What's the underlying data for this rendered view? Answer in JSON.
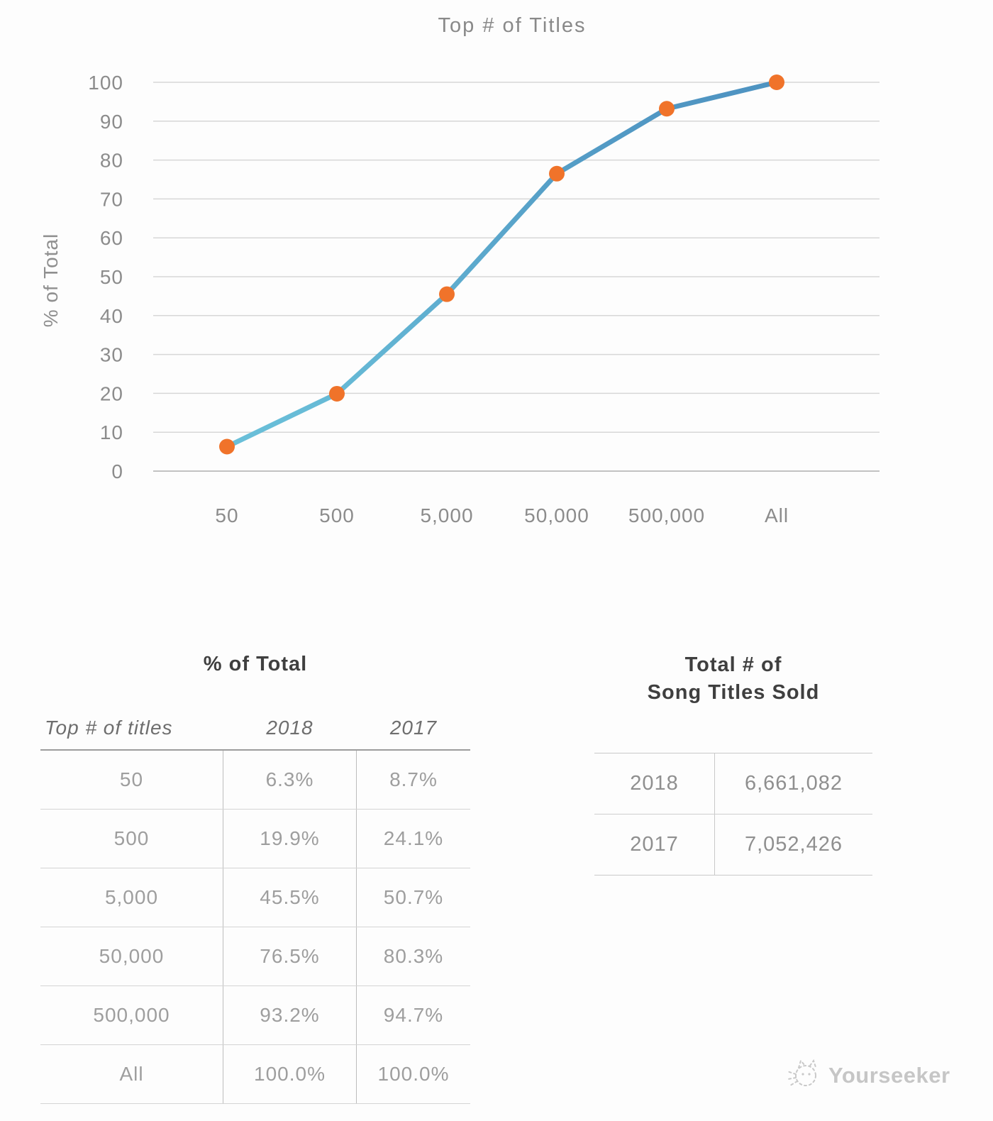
{
  "chart_data": {
    "type": "line",
    "title": "Top # of Titles",
    "ylabel": "% of Total",
    "xlabel": "",
    "categories": [
      "50",
      "500",
      "5,000",
      "50,000",
      "500,000",
      "All"
    ],
    "series": [
      {
        "name": "2018",
        "values": [
          6.3,
          19.9,
          45.5,
          76.5,
          93.2,
          100.0
        ]
      }
    ],
    "ylim": [
      0,
      100
    ],
    "y_ticks": [
      0,
      10,
      20,
      30,
      40,
      50,
      60,
      70,
      80,
      90,
      100
    ],
    "grid": true,
    "legend": "none",
    "line_color_top": "#4E93C1",
    "line_color_bottom": "#6CC3DB",
    "marker_color": "#F0732A"
  },
  "percent_table": {
    "title": "% of Total",
    "columns": [
      "Top # of titles",
      "2018",
      "2017"
    ],
    "rows": [
      {
        "label": "50",
        "y2018": "6.3%",
        "y2017": "8.7%"
      },
      {
        "label": "500",
        "y2018": "19.9%",
        "y2017": "24.1%"
      },
      {
        "label": "5,000",
        "y2018": "45.5%",
        "y2017": "50.7%"
      },
      {
        "label": "50,000",
        "y2018": "76.5%",
        "y2017": "80.3%"
      },
      {
        "label": "500,000",
        "y2018": "93.2%",
        "y2017": "94.7%"
      },
      {
        "label": "All",
        "y2018": "100.0%",
        "y2017": "100.0%"
      }
    ]
  },
  "totals_table": {
    "title_line1": "Total # of",
    "title_line2": "Song Titles Sold",
    "rows": [
      {
        "label": "2018",
        "value": "6,661,082"
      },
      {
        "label": "2017",
        "value": "7,052,426"
      }
    ]
  },
  "watermark": {
    "label": "Yourseeker",
    "icon": "cat-doodle-icon"
  },
  "colors": {
    "gridline": "#d7d7d7",
    "axis_line": "#c2c2c2",
    "tick_text": "#8c8c8c",
    "table_text": "#9e9e9e",
    "header_text": "#6e6e6e",
    "title_text": "#3f3f3f",
    "watermark_text": "#c6c6c6"
  }
}
